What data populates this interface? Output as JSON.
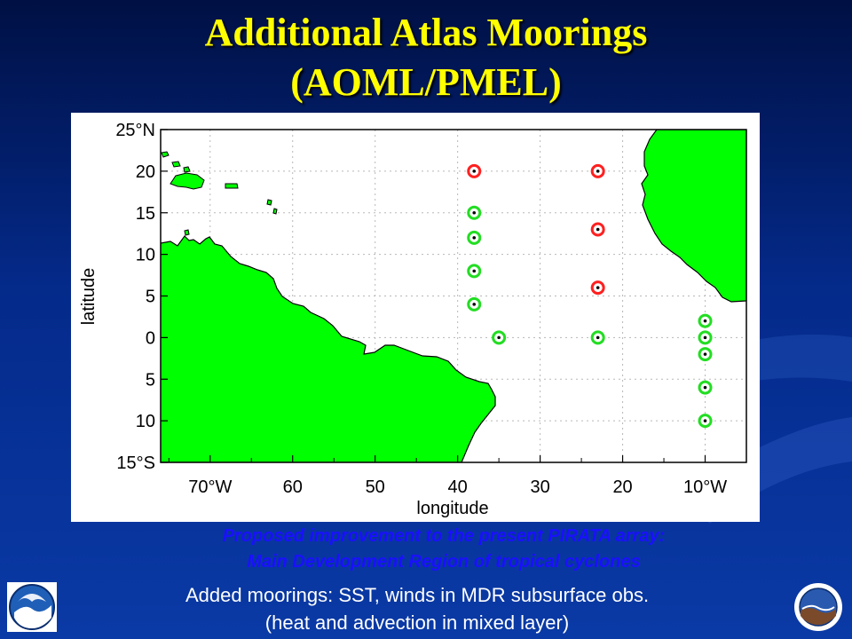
{
  "title": {
    "line1": "Additional Atlas Moorings",
    "line2": "(AOML/PMEL)"
  },
  "map": {
    "xlabel": "longitude",
    "ylabel": "latitude",
    "lon_range": [
      -76,
      -5
    ],
    "lat_range": [
      -15,
      25
    ],
    "grid": "dotted",
    "land_color": "#00ff00",
    "x_ticks": [
      {
        "lon": -70,
        "label": "70°W"
      },
      {
        "lon": -60,
        "label": "60"
      },
      {
        "lon": -50,
        "label": "50"
      },
      {
        "lon": -40,
        "label": "40"
      },
      {
        "lon": -30,
        "label": "30"
      },
      {
        "lon": -20,
        "label": "20"
      },
      {
        "lon": -10,
        "label": "10°W"
      }
    ],
    "y_ticks": [
      {
        "lat": 25,
        "label": "25°N"
      },
      {
        "lat": 20,
        "label": "20"
      },
      {
        "lat": 15,
        "label": "15"
      },
      {
        "lat": 10,
        "label": "10"
      },
      {
        "lat": 5,
        "label": "5"
      },
      {
        "lat": 0,
        "label": "0"
      },
      {
        "lat": -5,
        "label": "5"
      },
      {
        "lat": -10,
        "label": "10"
      },
      {
        "lat": -15,
        "label": "15°S"
      }
    ],
    "moorings": [
      {
        "lon": -38,
        "lat": 20,
        "type": "red"
      },
      {
        "lon": -23,
        "lat": 20,
        "type": "red"
      },
      {
        "lon": -23,
        "lat": 13,
        "type": "red"
      },
      {
        "lon": -23,
        "lat": 6,
        "type": "red"
      },
      {
        "lon": -38,
        "lat": 15,
        "type": "green"
      },
      {
        "lon": -38,
        "lat": 12,
        "type": "green"
      },
      {
        "lon": -38,
        "lat": 8,
        "type": "green"
      },
      {
        "lon": -38,
        "lat": 4,
        "type": "green"
      },
      {
        "lon": -35,
        "lat": 0,
        "type": "green"
      },
      {
        "lon": -23,
        "lat": 0,
        "type": "green"
      },
      {
        "lon": -10,
        "lat": 2,
        "type": "green"
      },
      {
        "lon": -10,
        "lat": 0,
        "type": "green"
      },
      {
        "lon": -10,
        "lat": -2,
        "type": "green"
      },
      {
        "lon": -10,
        "lat": -6,
        "type": "green"
      },
      {
        "lon": -10,
        "lat": -10,
        "type": "green"
      }
    ],
    "mooring_colors": {
      "red": "#ff2020",
      "green": "#22dd22"
    }
  },
  "caption": {
    "line1": "Proposed improvement to the  present PIRATA array:",
    "line2": "Main Development Region of tropical cyclones"
  },
  "note": {
    "line1": "Added moorings:  SST, winds in MDR subsurface obs.",
    "line2": "(heat and advection in mixed layer)"
  }
}
